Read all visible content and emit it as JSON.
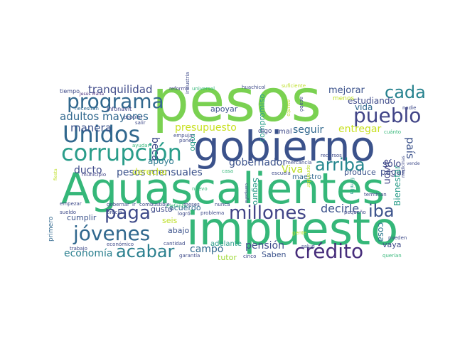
{
  "words": [
    {
      "text": "pesos",
      "color": "#7ad151"
    },
    {
      "text": "gobierno",
      "color": "#3b528b"
    },
    {
      "text": "Aguascalientes",
      "color": "#35b779"
    },
    {
      "text": "impuesto",
      "color": "#35b779"
    },
    {
      "text": "corrupción",
      "color": "#2a9d8a"
    },
    {
      "text": "Unidos",
      "color": "#31688e"
    },
    {
      "text": "programa",
      "color": "#31688e"
    },
    {
      "text": "pueblo",
      "color": "#414487"
    },
    {
      "text": "crédito",
      "color": "#472d7b"
    },
    {
      "text": "millones",
      "color": "#414487"
    },
    {
      "text": "jóvenes",
      "color": "#31688e"
    },
    {
      "text": "acabar",
      "color": "#2a7f8e"
    },
    {
      "text": "paga",
      "color": "#3e4a89"
    },
    {
      "text": "arriba",
      "color": "#24868e"
    },
    {
      "text": "cada",
      "color": "#26828e"
    },
    {
      "text": "iba",
      "color": "#3b528b"
    },
    {
      "text": "tranquilidad",
      "color": "#3e4a89"
    },
    {
      "text": "adultos mayores",
      "color": "#31688e"
    },
    {
      "text": "manera",
      "color": "#3b528b"
    },
    {
      "text": "beca",
      "color": "#3e4a89"
    },
    {
      "text": "presupuesto",
      "color": "#c8e020"
    },
    {
      "text": "gobernador",
      "color": "#3b528b"
    },
    {
      "text": "seguir",
      "color": "#31688e"
    },
    {
      "text": "entregar",
      "color": "#c8e020"
    },
    {
      "text": "Viva",
      "color": "#bddf26"
    },
    {
      "text": "ducto",
      "color": "#3e4a89"
    },
    {
      "text": "pesos mensuales",
      "color": "#3b528b"
    },
    {
      "text": "derecho",
      "color": "#c8e020"
    },
    {
      "text": "apoyo",
      "color": "#2a788e"
    },
    {
      "text": "decirle",
      "color": "#3b528b"
    },
    {
      "text": "pensión",
      "color": "#3e4a89"
    },
    {
      "text": "economía",
      "color": "#2a7f8e"
    },
    {
      "text": "campo",
      "color": "#31688e"
    },
    {
      "text": "mejorar",
      "color": "#3b528b"
    },
    {
      "text": "estudiando",
      "color": "#3e4a89"
    },
    {
      "text": "vida",
      "color": "#31688e"
    },
    {
      "text": "país",
      "color": "#3b528b"
    },
    {
      "text": "avión",
      "color": "#414487"
    },
    {
      "text": "sólo",
      "color": "#3e4a89"
    },
    {
      "text": "pagar",
      "color": "#3e4a89"
    },
    {
      "text": "produce",
      "color": "#3b528b"
    },
    {
      "text": "cosa",
      "color": "#2a788e"
    },
    {
      "text": "Bienestar",
      "color": "#2a9d8a"
    },
    {
      "text": "vaya",
      "color": "#3e4a89"
    },
    {
      "text": "Saben",
      "color": "#3b528b"
    },
    {
      "text": "tutor",
      "color": "#a0da39"
    },
    {
      "text": "seis",
      "color": "#bddf26"
    },
    {
      "text": "abajo",
      "color": "#3b528b"
    },
    {
      "text": "acuerdo",
      "color": "#31688e"
    },
    {
      "text": "gusto",
      "color": "#3e4a89"
    },
    {
      "text": "cumplir",
      "color": "#3b528b"
    },
    {
      "text": "apoyar",
      "color": "#3b528b"
    },
    {
      "text": "robo",
      "color": "#2a9d8a"
    },
    {
      "text": "compromiso",
      "color": "#2a9d8a"
    },
    {
      "text": "Seguro",
      "color": "#2a9d8a"
    },
    {
      "text": "maestro",
      "color": "#31688e"
    },
    {
      "text": "mal",
      "color": "#3e4a89"
    },
    {
      "text": "digo",
      "color": "#3e4a89"
    },
    {
      "text": "menos",
      "color": "#bddf26"
    },
    {
      "text": "Infonavit",
      "color": "#414487"
    },
    {
      "text": "salir",
      "color": "#3e4a89"
    },
    {
      "text": "ayudar",
      "color": "#35b779"
    },
    {
      "text": "popular",
      "color": "#3e4a89"
    },
    {
      "text": "empujar",
      "color": "#3e4a89"
    },
    {
      "text": "poner",
      "color": "#3e4a89"
    },
    {
      "text": "necesitan",
      "color": "#31688e"
    },
    {
      "text": "tiempo",
      "color": "#3e4a89"
    },
    {
      "text": "Jesús María",
      "color": "#472d7b"
    },
    {
      "text": "reforma",
      "color": "#414487"
    },
    {
      "text": "universal",
      "color": "#35b779"
    },
    {
      "text": "huachicol",
      "color": "#3e4a89"
    },
    {
      "text": "suficiente",
      "color": "#bddf26"
    },
    {
      "text": "industria",
      "color": "#3e4a89"
    },
    {
      "text": "asunto",
      "color": "#bddf26"
    },
    {
      "text": "acabó",
      "color": "#3e4a89"
    },
    {
      "text": "nadie",
      "color": "#3e4a89"
    },
    {
      "text": "cuánto",
      "color": "#35b779"
    },
    {
      "text": "recursos",
      "color": "#3e4a89"
    },
    {
      "text": "aprender",
      "color": "#bddf26"
    },
    {
      "text": "mercancía",
      "color": "#3e4a89"
    },
    {
      "text": "escuela",
      "color": "#3e4a89"
    },
    {
      "text": "casa",
      "color": "#35b779"
    },
    {
      "text": "campaña",
      "color": "#3e4a89"
    },
    {
      "text": "nuevo",
      "color": "#35b779"
    },
    {
      "text": "municipio",
      "color": "#414487"
    },
    {
      "text": "familia",
      "color": "#2a9d8a"
    },
    {
      "text": "terminan",
      "color": "#3e4a89"
    },
    {
      "text": "medicinas",
      "color": "#3e4a89"
    },
    {
      "text": "vende",
      "color": "#3e4a89"
    },
    {
      "text": "fiesta",
      "color": "#bddf26"
    },
    {
      "text": "empezar",
      "color": "#3e4a89"
    },
    {
      "text": "sueldo",
      "color": "#3e4a89"
    },
    {
      "text": "gobernar",
      "color": "#3e4a89"
    },
    {
      "text": "ir",
      "color": "#3e4a89"
    },
    {
      "text": "combustible",
      "color": "#3e4a89"
    },
    {
      "text": "precio",
      "color": "#3e4a89"
    },
    {
      "text": "elefante",
      "color": "#35b779"
    },
    {
      "text": "logró",
      "color": "#3e4a89"
    },
    {
      "text": "problema",
      "color": "#3e4a89"
    },
    {
      "text": "meses",
      "color": "#3e4a89"
    },
    {
      "text": "nunca",
      "color": "#3e4a89"
    },
    {
      "text": "adelante",
      "color": "#2a9d8a"
    },
    {
      "text": "cantidad",
      "color": "#3e4a89"
    },
    {
      "text": "garantía",
      "color": "#3e4a89"
    },
    {
      "text": "cinco",
      "color": "#3e4a89"
    },
    {
      "text": "gente",
      "color": "#bddf26"
    },
    {
      "text": "salud",
      "color": "#3e4a89"
    },
    {
      "text": "pequeño",
      "color": "#3e4a89"
    },
    {
      "text": "pueden",
      "color": "#3e4a89"
    },
    {
      "text": "querían",
      "color": "#35b779"
    },
    {
      "text": "primero",
      "color": "#31688e"
    },
    {
      "text": "trabajo",
      "color": "#3e4a89"
    },
    {
      "text": "económico",
      "color": "#3e4a89"
    }
  ]
}
